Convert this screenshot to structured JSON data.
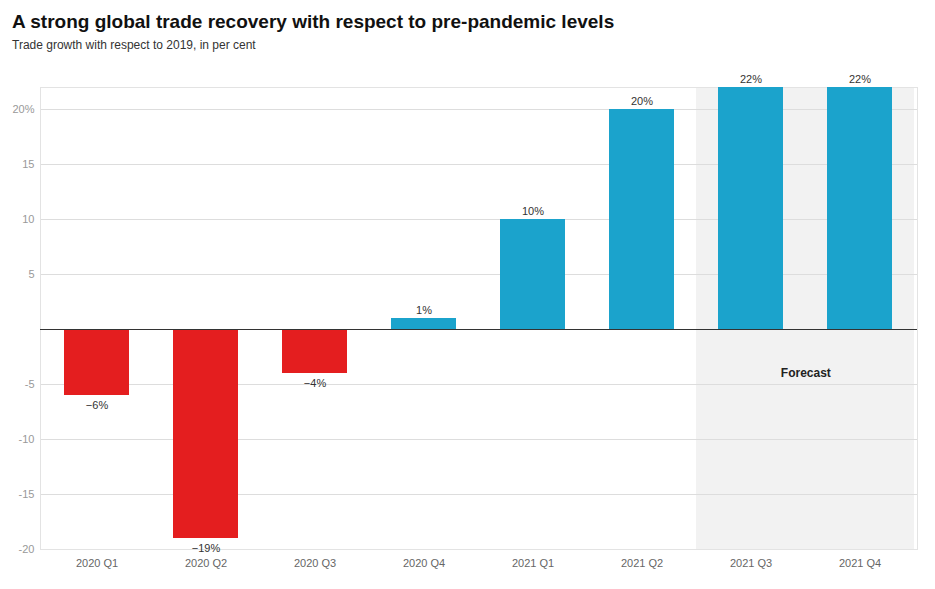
{
  "chart_data": {
    "type": "bar",
    "title": "A strong global trade recovery with respect to pre-pandemic levels",
    "subtitle": "Trade growth with respect to 2019, in per cent",
    "categories": [
      "2020 Q1",
      "2020 Q2",
      "2020 Q3",
      "2020 Q4",
      "2021 Q1",
      "2021 Q2",
      "2021 Q3",
      "2021 Q4"
    ],
    "values": [
      -6,
      -19,
      -4,
      1,
      10,
      20,
      22,
      22
    ],
    "value_labels": [
      "−6%",
      "−19%",
      "−4%",
      "1%",
      "10%",
      "20%",
      "22%",
      "22%"
    ],
    "colors": [
      "#e41e1f",
      "#e41e1f",
      "#e41e1f",
      "#1ba3cc",
      "#1ba3cc",
      "#1ba3cc",
      "#1ba3cc",
      "#1ba3cc"
    ],
    "ylim": [
      -20,
      22
    ],
    "yticks": [
      -20,
      -15,
      -10,
      -5,
      5,
      10,
      15,
      {
        "value": 20,
        "label": "20%"
      }
    ],
    "grid": true,
    "data_labels": true,
    "annotations": [
      {
        "text": "Forecast",
        "from": "2021 Q3",
        "to": "2021 Q4"
      }
    ]
  }
}
